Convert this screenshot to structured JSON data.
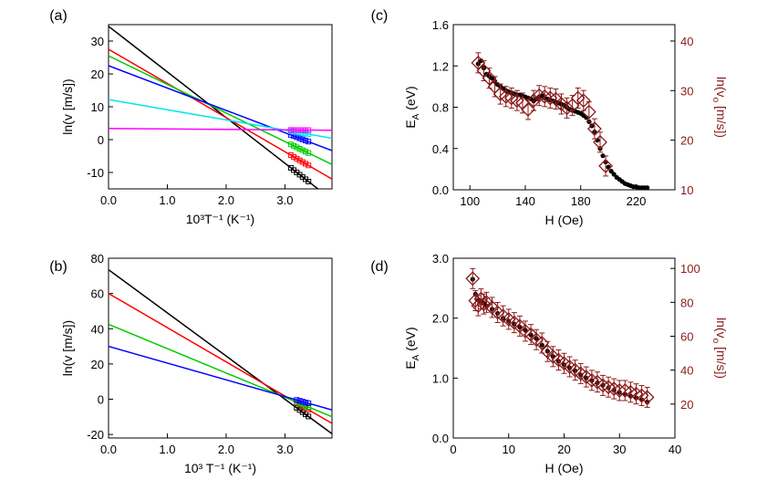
{
  "figure": {
    "panel_labels": [
      "(a)",
      "(b)",
      "(c)",
      "(d)"
    ]
  },
  "chart_data": [
    {
      "id": "a",
      "type": "line",
      "label": "(a)",
      "xlabel": "10³T⁻¹ (K⁻¹)",
      "ylabel": "ln(v [m/s])",
      "xlim": [
        0,
        3.8
      ],
      "ylim": [
        -15,
        35
      ],
      "xticks": [
        0,
        1,
        2,
        3
      ],
      "xtick_labels": [
        "0.0",
        "1.0",
        "2.0",
        "3.0"
      ],
      "yticks": [
        -10,
        0,
        10,
        20,
        30
      ],
      "ytick_labels": [
        "-10",
        "0",
        "10",
        "20",
        "30"
      ],
      "series": [
        {
          "name": "black",
          "color": "#000000",
          "intercept": 34.5,
          "slope": -13.9,
          "points_x": [
            3.1,
            3.15,
            3.2,
            3.25,
            3.3,
            3.35,
            3.4
          ]
        },
        {
          "name": "red",
          "color": "#ff0000",
          "intercept": 27.5,
          "slope": -10.4,
          "points_x": [
            3.1,
            3.15,
            3.2,
            3.25,
            3.3,
            3.35,
            3.4
          ]
        },
        {
          "name": "green",
          "color": "#00cc00",
          "intercept": 25.5,
          "slope": -8.7,
          "points_x": [
            3.1,
            3.15,
            3.2,
            3.25,
            3.3,
            3.35,
            3.4
          ]
        },
        {
          "name": "blue",
          "color": "#0000ff",
          "intercept": 22.5,
          "slope": -6.8,
          "points_x": [
            3.1,
            3.15,
            3.2,
            3.25,
            3.3,
            3.35,
            3.4
          ]
        },
        {
          "name": "cyan",
          "color": "#00e5ee",
          "intercept": 12.2,
          "slope": -3.1,
          "points_x": [
            3.1,
            3.15,
            3.2,
            3.25,
            3.3,
            3.35,
            3.4
          ]
        },
        {
          "name": "magenta",
          "color": "#ff00ff",
          "intercept": 3.4,
          "slope": -0.15,
          "points_x": [
            3.1,
            3.15,
            3.2,
            3.25,
            3.3,
            3.35,
            3.4
          ]
        }
      ]
    },
    {
      "id": "b",
      "type": "line",
      "label": "(b)",
      "xlabel": "10³ T⁻¹ (K⁻¹)",
      "ylabel": "ln(v [m/s])",
      "xlim": [
        0,
        3.8
      ],
      "ylim": [
        -22,
        80
      ],
      "xticks": [
        0,
        1,
        2,
        3
      ],
      "xtick_labels": [
        "0.0",
        "1.0",
        "2.0",
        "3.0"
      ],
      "yticks": [
        -20,
        0,
        20,
        40,
        60,
        80
      ],
      "ytick_labels": [
        "-20",
        "0",
        "20",
        "40",
        "60",
        "80"
      ],
      "series": [
        {
          "name": "black",
          "color": "#000000",
          "intercept": 73.5,
          "slope": -24.5,
          "points_x": [
            3.2,
            3.25,
            3.3,
            3.35,
            3.4
          ]
        },
        {
          "name": "red",
          "color": "#ff0000",
          "intercept": 60.0,
          "slope": -19.4,
          "points_x": [
            3.2,
            3.25,
            3.3,
            3.35,
            3.4
          ]
        },
        {
          "name": "green",
          "color": "#00cc00",
          "intercept": 42.5,
          "slope": -13.8,
          "points_x": [
            3.2,
            3.25,
            3.3,
            3.35,
            3.4
          ]
        },
        {
          "name": "blue",
          "color": "#0000ff",
          "intercept": 30.0,
          "slope": -9.5,
          "points_x": [
            3.2,
            3.25,
            3.3,
            3.35,
            3.4
          ]
        }
      ]
    },
    {
      "id": "c",
      "type": "scatter",
      "label": "(c)",
      "xlabel": "H (Oe)",
      "ylabel_main": "E",
      "ylabel_sub": "A",
      "ylabel_tail": " (eV)",
      "y2label_main": "ln(v",
      "y2label_sub": "o",
      "y2label_tail": " [m/s])",
      "xlim": [
        88,
        248
      ],
      "ylim": [
        0,
        1.6
      ],
      "y2lim": [
        10,
        43.3
      ],
      "xticks": [
        100,
        140,
        180,
        220
      ],
      "xtick_labels": [
        "100",
        "140",
        "180",
        "220"
      ],
      "yticks": [
        0,
        0.4,
        0.8,
        1.2,
        1.6
      ],
      "ytick_labels": [
        "0.0",
        "0.4",
        "0.8",
        "1.2",
        "1.6"
      ],
      "y2ticks": [
        10,
        20,
        30,
        40
      ],
      "y2tick_labels": [
        "10",
        "20",
        "30",
        "40"
      ],
      "series": [
        {
          "name": "E_A",
          "color": "#000000",
          "x": [
            106,
            108,
            110,
            112,
            114,
            116,
            118,
            120,
            122,
            124,
            126,
            128,
            130,
            132,
            134,
            136,
            138,
            140,
            142,
            144,
            146,
            148,
            150,
            152,
            154,
            156,
            158,
            160,
            162,
            164,
            166,
            168,
            170,
            172,
            174,
            176,
            178,
            180,
            182,
            184,
            186,
            188,
            190,
            192,
            194,
            196,
            198,
            200,
            202,
            204,
            206,
            208,
            210,
            212,
            214,
            216,
            218,
            220,
            222,
            224,
            226,
            228
          ],
          "y": [
            1.22,
            1.25,
            1.18,
            1.12,
            1.1,
            1.08,
            1.05,
            1.02,
            1.0,
            0.98,
            0.96,
            0.95,
            0.94,
            0.93,
            0.92,
            0.92,
            0.91,
            0.9,
            0.89,
            0.88,
            0.86,
            0.88,
            0.9,
            0.91,
            0.89,
            0.88,
            0.87,
            0.86,
            0.85,
            0.84,
            0.83,
            0.82,
            0.8,
            0.78,
            0.77,
            0.76,
            0.75,
            0.74,
            0.72,
            0.7,
            0.66,
            0.62,
            0.56,
            0.48,
            0.4,
            0.33,
            0.27,
            0.22,
            0.18,
            0.15,
            0.12,
            0.1,
            0.08,
            0.06,
            0.05,
            0.04,
            0.03,
            0.03,
            0.02,
            0.02,
            0.02,
            0.02
          ]
        },
        {
          "name": "ln(v_o)",
          "color": "#8b1a1a",
          "axis": "right",
          "x": [
            106,
            110,
            114,
            118,
            122,
            126,
            130,
            134,
            138,
            142,
            146,
            150,
            154,
            158,
            162,
            166,
            170,
            174,
            178,
            182,
            186,
            190,
            194,
            198
          ],
          "y": [
            35.6,
            34.0,
            32.5,
            30.8,
            29.3,
            28.8,
            28.5,
            28.0,
            27.5,
            26.2,
            28.0,
            29.0,
            28.8,
            28.5,
            28.3,
            27.3,
            26.5,
            27.0,
            28.5,
            28.0,
            25.7,
            22.3,
            19.6,
            14.8
          ]
        }
      ]
    },
    {
      "id": "d",
      "type": "scatter",
      "label": "(d)",
      "xlabel": "H (Oe)",
      "ylabel_main": "E",
      "ylabel_sub": "A",
      "ylabel_tail": " (eV)",
      "y2label_main": "ln(v",
      "y2label_sub": "o",
      "y2label_tail": " [m/s])",
      "xlim": [
        0,
        40
      ],
      "ylim": [
        0,
        3.0
      ],
      "y2lim": [
        0,
        106
      ],
      "xticks": [
        0,
        10,
        20,
        30,
        40
      ],
      "xtick_labels": [
        "0",
        "10",
        "20",
        "30",
        "40"
      ],
      "yticks": [
        0,
        1,
        2,
        3
      ],
      "ytick_labels": [
        "0.0",
        "1.0",
        "2.0",
        "3.0"
      ],
      "y2ticks": [
        20,
        40,
        60,
        80,
        100
      ],
      "y2tick_labels": [
        "20",
        "40",
        "60",
        "80",
        "100"
      ],
      "series": [
        {
          "name": "E_A",
          "color": "#000000",
          "x": [
            3.5,
            4,
            4.5,
            5,
            5.5,
            6,
            7,
            8,
            9,
            10,
            11,
            12,
            13,
            14,
            15,
            16,
            17,
            18,
            19,
            20,
            21,
            22,
            23,
            24,
            25,
            26,
            27,
            28,
            29,
            30,
            31,
            32,
            33,
            34,
            35
          ],
          "y": [
            2.65,
            2.4,
            2.3,
            2.28,
            2.25,
            2.2,
            2.15,
            2.08,
            2.0,
            1.95,
            1.9,
            1.85,
            1.8,
            1.72,
            1.66,
            1.55,
            1.45,
            1.36,
            1.28,
            1.22,
            1.17,
            1.12,
            1.05,
            1.0,
            0.96,
            0.92,
            0.88,
            0.84,
            0.8,
            0.76,
            0.73,
            0.7,
            0.67,
            0.64,
            0.6
          ]
        },
        {
          "name": "ln(v_o)",
          "color": "#8b1a1a",
          "axis": "right",
          "x": [
            3.5,
            4,
            4.5,
            5,
            5.5,
            6,
            7,
            8,
            9,
            10,
            11,
            12,
            13,
            14,
            15,
            16,
            17,
            18,
            19,
            20,
            21,
            22,
            23,
            24,
            25,
            26,
            27,
            28,
            29,
            30,
            31,
            32,
            33,
            34,
            35
          ],
          "y": [
            94,
            81,
            78,
            82,
            79,
            80,
            77,
            74,
            72,
            70,
            68,
            66,
            63,
            61,
            58,
            56,
            51,
            48,
            46,
            44,
            42,
            40,
            38,
            36,
            34,
            33,
            31,
            30,
            29,
            28,
            28,
            27,
            26,
            25,
            24
          ]
        }
      ]
    }
  ]
}
